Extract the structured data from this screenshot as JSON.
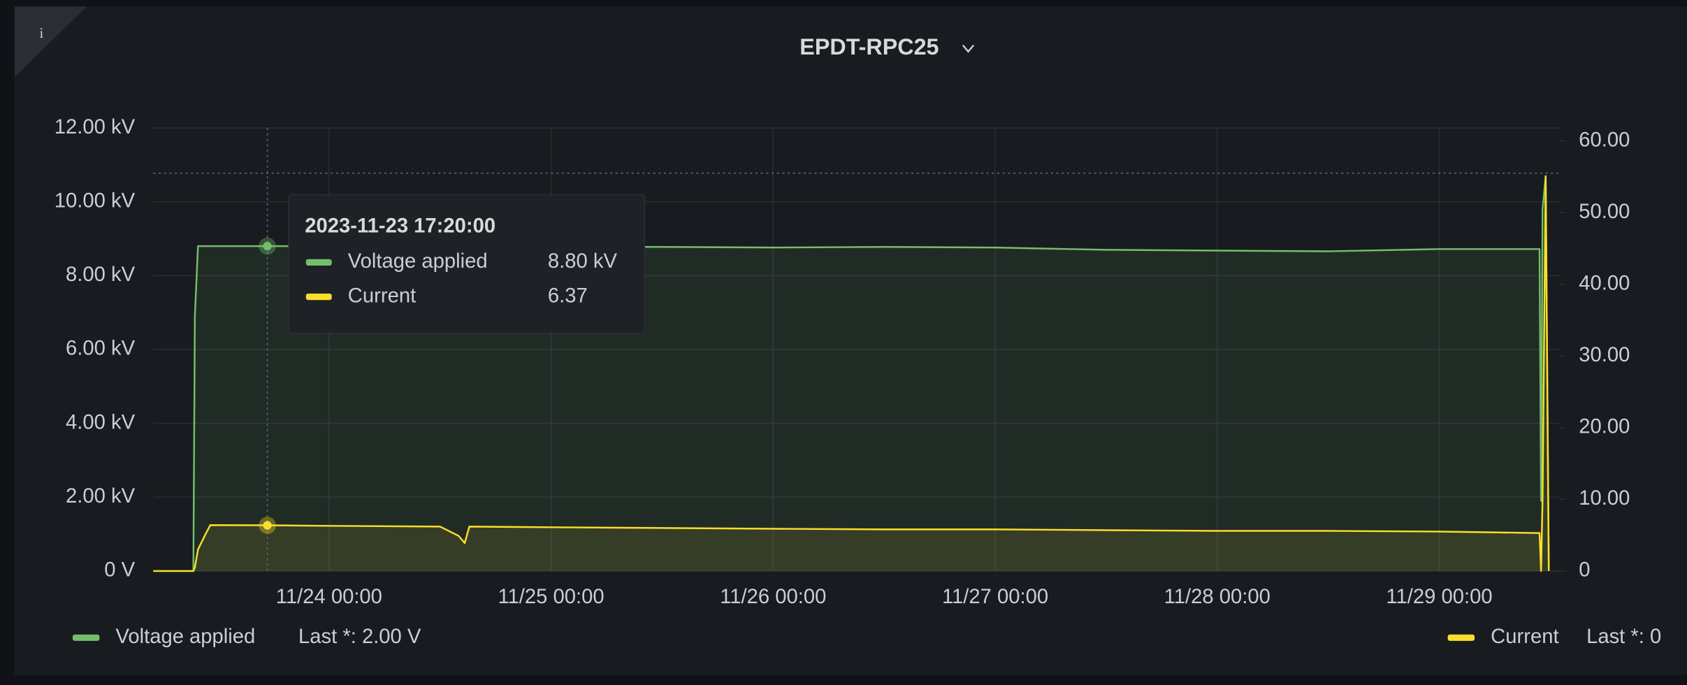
{
  "chart_data": {
    "type": "line",
    "title": "EPDT-RPC25",
    "x": [
      "11/23 05:00",
      "11/23 09:20",
      "11/23 09:30",
      "11/23 09:50",
      "11/23 10:40",
      "11/23 11:10",
      "11/23 17:20",
      "11/24 00:00",
      "11/24 12:00",
      "11/24 14:00",
      "11/24 14:40",
      "11/24 15:10",
      "11/25 00:00",
      "11/25 12:00",
      "11/26 00:00",
      "11/26 12:00",
      "11/27 00:00",
      "11/27 12:00",
      "11/28 00:00",
      "11/28 12:00",
      "11/29 00:00",
      "11/29 10:50",
      "11/29 11:00",
      "11/29 11:10",
      "11/29 11:30",
      "11/29 11:50"
    ],
    "series": [
      {
        "name": "Voltage applied",
        "color": "#73bf69",
        "values": [
          0,
          0,
          6900,
          8800,
          8800,
          8800,
          8800,
          8800,
          8800,
          8800,
          8800,
          8800,
          8780,
          8780,
          8760,
          8780,
          8760,
          8700,
          8680,
          8660,
          8720,
          8720,
          1900,
          9800,
          10700,
          2
        ]
      },
      {
        "name": "Current",
        "color": "#fade2a",
        "axis": "y2",
        "values": [
          0,
          0,
          0.5,
          3,
          5.2,
          6.4,
          6.37,
          6.3,
          6.2,
          4.9,
          3.9,
          6.2,
          6.1,
          6.0,
          5.9,
          5.8,
          5.8,
          5.7,
          5.6,
          5.6,
          5.5,
          5.3,
          0,
          10,
          55,
          0
        ]
      }
    ],
    "xlim": [
      "11/23 05:00",
      "11/29 13:00"
    ],
    "xticks": [
      "11/24 00:00",
      "11/25 00:00",
      "11/26 00:00",
      "11/27 00:00",
      "11/28 00:00",
      "11/29 00:00"
    ],
    "ylim": [
      0,
      12000
    ],
    "yticks": [
      {
        "value": 0,
        "label": "0 V"
      },
      {
        "value": 2000,
        "label": "2.00 kV"
      },
      {
        "value": 4000,
        "label": "4.00 kV"
      },
      {
        "value": 6000,
        "label": "6.00 kV"
      },
      {
        "value": 8000,
        "label": "8.00 kV"
      },
      {
        "value": 10000,
        "label": "10.00 kV"
      },
      {
        "value": 12000,
        "label": "12.00 kV"
      }
    ],
    "y2lim": [
      0,
      61.8
    ],
    "y2ticks": [
      0,
      {
        "value": 10,
        "label": "10.00"
      },
      {
        "value": 20,
        "label": "20.00"
      },
      {
        "value": 30,
        "label": "30.00"
      },
      {
        "value": 40,
        "label": "40.00"
      },
      {
        "value": 50,
        "label": "50.00"
      },
      {
        "value": 60,
        "label": "60.00"
      }
    ],
    "grid": true,
    "legend_stats": [
      "Last *: 2.00 V",
      "Last *: 0"
    ],
    "tooltip": {
      "time": "2023-11-23 17:20:00",
      "index": 6,
      "value_labels": [
        "8.80 kV",
        "6.37"
      ]
    }
  }
}
